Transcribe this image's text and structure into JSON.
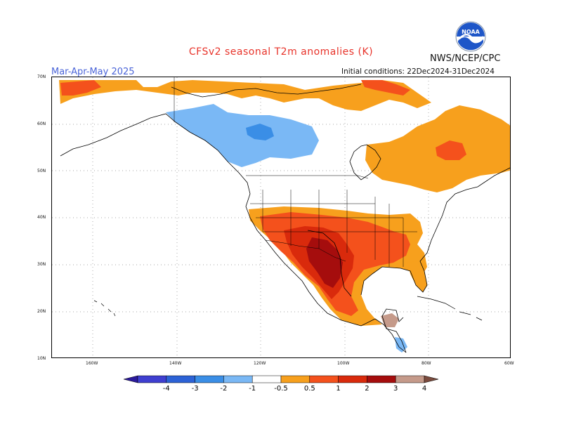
{
  "title": "CFSv2 seasonal T2m anomalies (K)",
  "agency": "NWS/NCEP/CPC",
  "logo_text": "NOAA",
  "season": "Mar-Apr-May 2025",
  "initial_conditions": "Initial conditions: 22Dec2024-31Dec2024",
  "lat_labels": [
    "70N",
    "60N",
    "50N",
    "40N",
    "30N",
    "20N",
    "10N"
  ],
  "lon_labels": [
    "160W",
    "140W",
    "120W",
    "100W",
    "80W",
    "60W"
  ],
  "colorbar": {
    "labels": [
      "-4",
      "-3",
      "-2",
      "-1",
      "-0.5",
      "0.5",
      "1",
      "2",
      "3",
      "4"
    ],
    "colors": [
      "#2b1a9c",
      "#3f3fd0",
      "#2c62d6",
      "#3a8ee6",
      "#7ab8f5",
      "#ffffff",
      "#f7a01d",
      "#f4511c",
      "#d92a0c",
      "#a50d0d",
      "#c59a8a",
      "#7a4b3e"
    ]
  },
  "colors": {
    "title": "#e8332a",
    "season": "#4a64d8",
    "noaa_blue": "#1e56c8"
  }
}
